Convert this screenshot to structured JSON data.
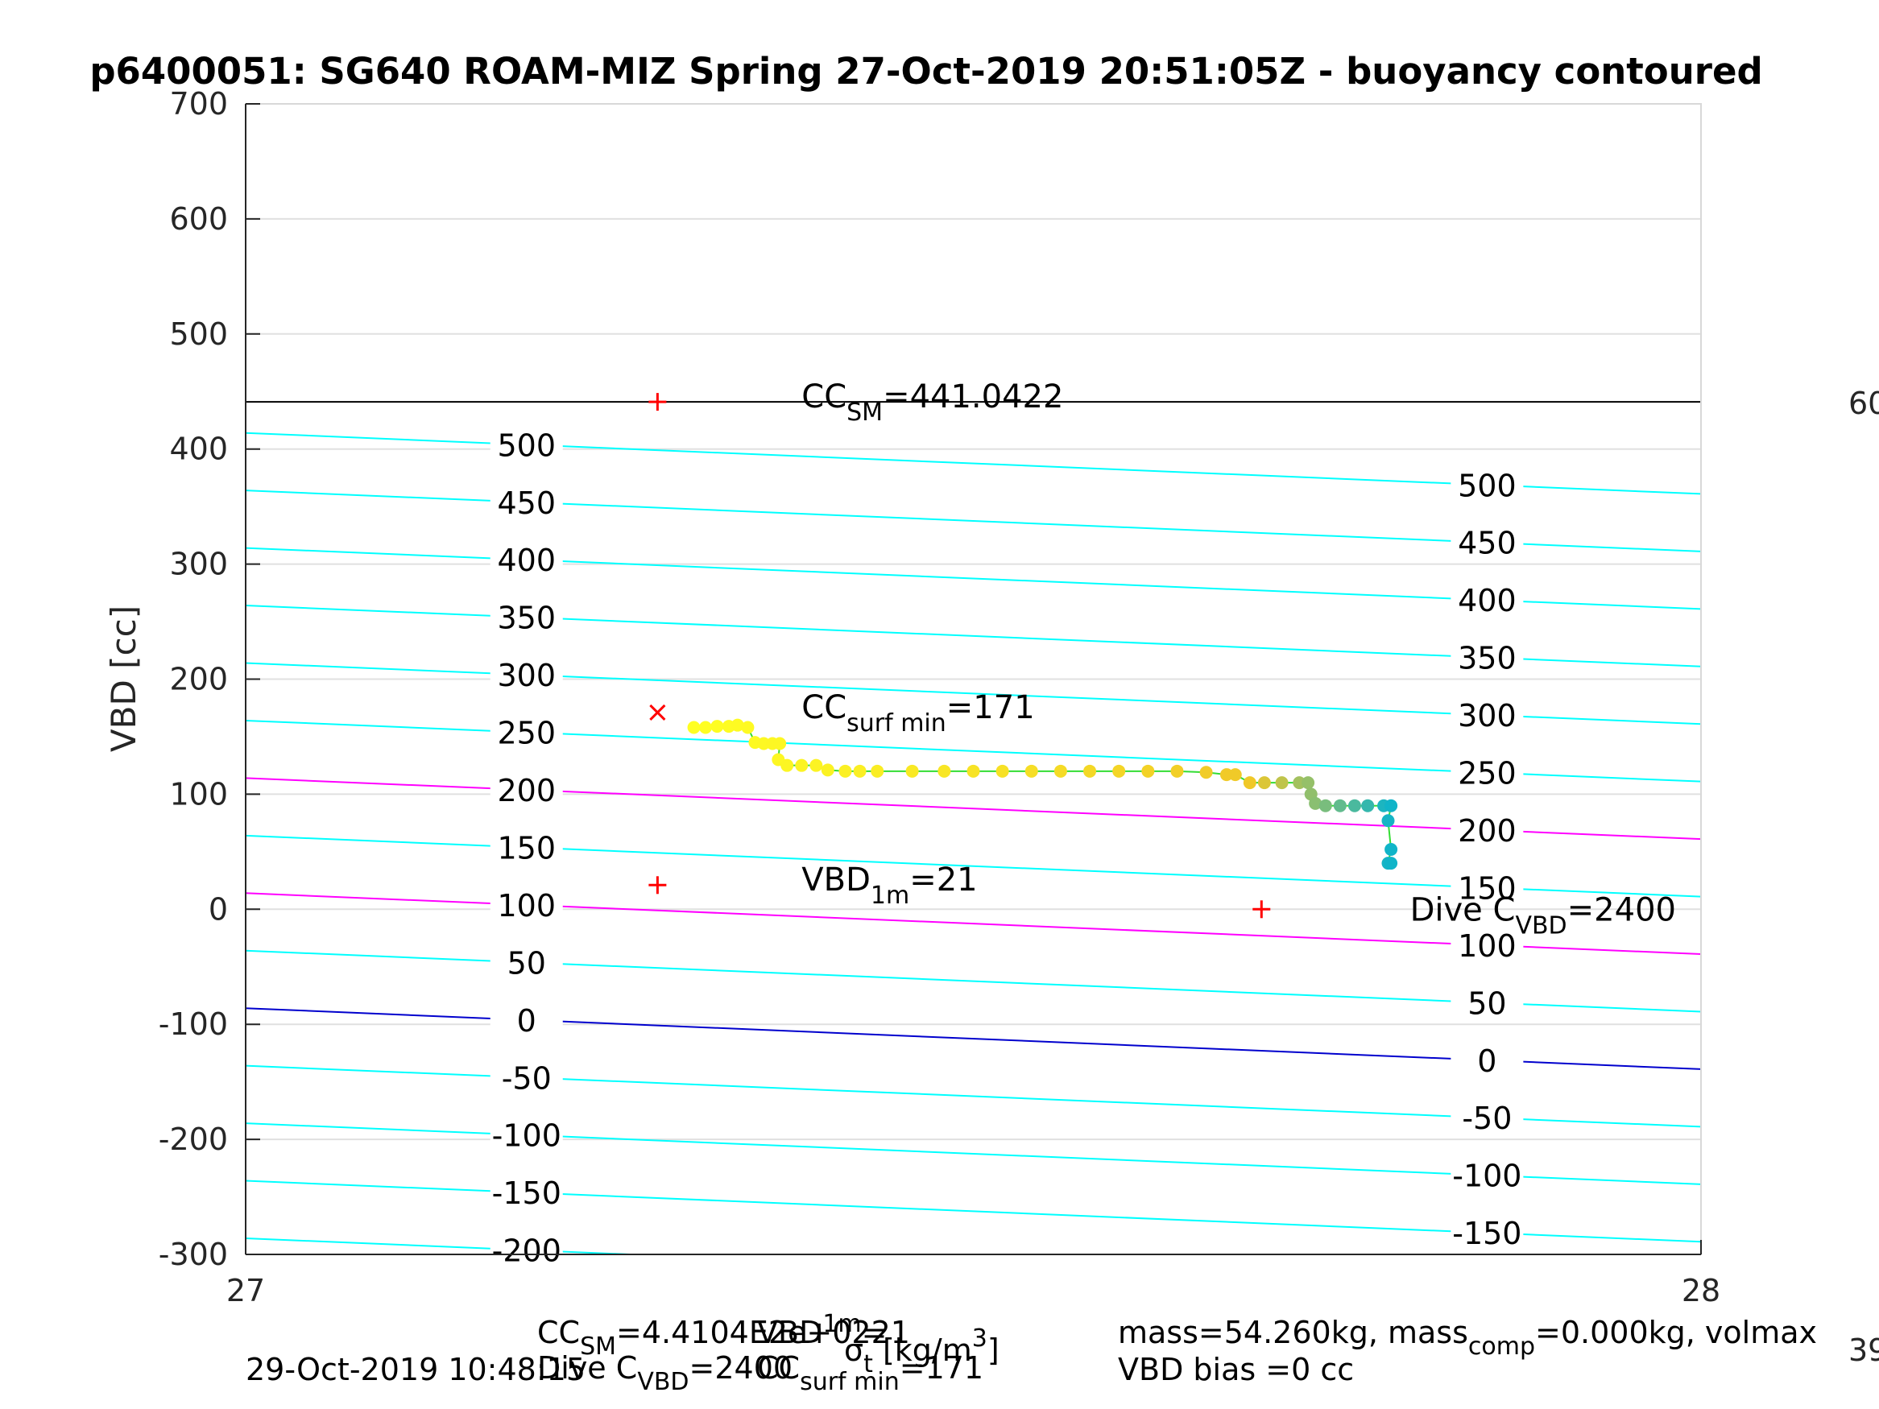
{
  "chart_data": {
    "type": "scatter",
    "title": "p6400051: SG640 ROAM-MIZ Spring 27-Oct-2019 20:51:05Z - buoyancy contoured",
    "xlabel": "",
    "xlabel_parts": [
      "σ",
      "t",
      " [kg/m",
      "3",
      "]"
    ],
    "ylabel": "VBD [cc]",
    "xlim": [
      27,
      28
    ],
    "ylim": [
      -300,
      700
    ],
    "xticks": [
      27,
      28
    ],
    "yticks": [
      -300,
      -200,
      -100,
      0,
      100,
      200,
      300,
      400,
      500,
      600,
      700
    ],
    "grid": true,
    "colors": {
      "contour": "#00ffff",
      "contour_magenta": "#ff00ff",
      "contour_zero": "#0000cd",
      "cc_sm_line": "#000000",
      "marker": "#ff0000",
      "trace_line": "#33dd33"
    },
    "contours": {
      "levels": [
        -200,
        -150,
        -100,
        -50,
        0,
        50,
        100,
        150,
        200,
        250,
        300,
        350,
        400,
        450,
        500
      ],
      "label_x_left": 27.193,
      "label_x_right": 27.853,
      "offset_at_27": -86,
      "offset_at_28": -139,
      "y_per_level": 1
    },
    "reference_lines": [
      {
        "name": "CC_SM",
        "y": 441
      }
    ],
    "markers": [
      {
        "type": "plus",
        "x": 27.283,
        "y": 441
      },
      {
        "type": "x",
        "x": 27.283,
        "y": 171
      },
      {
        "type": "plus",
        "x": 27.283,
        "y": 21
      },
      {
        "type": "plus",
        "x": 27.698,
        "y": 0
      }
    ],
    "annotations": [
      {
        "base": "CC",
        "sub": "SM",
        "rest": "=441.0422",
        "x": 27.382,
        "y": 446
      },
      {
        "base": "CC",
        "sub": "surf min",
        "rest": "=171",
        "x": 27.382,
        "y": 176
      },
      {
        "base": "VBD",
        "sub": "1m",
        "rest": "=21",
        "x": 27.382,
        "y": 26
      },
      {
        "base": "Dive C",
        "sub": "VBD",
        "rest": "=2400",
        "x": 27.8,
        "y": 0
      }
    ],
    "edge_labels": {
      "top": "60",
      "bottom": "39"
    },
    "series": [
      {
        "color_from": "#ffff22",
        "color_to": "#10b4c8",
        "points": [
          [
            27.308,
            158
          ],
          [
            27.316,
            158
          ],
          [
            27.324,
            159
          ],
          [
            27.332,
            159
          ],
          [
            27.338,
            160
          ],
          [
            27.345,
            158
          ],
          [
            27.35,
            145
          ],
          [
            27.356,
            144
          ],
          [
            27.362,
            144
          ],
          [
            27.367,
            144
          ],
          [
            27.366,
            130
          ],
          [
            27.372,
            125
          ],
          [
            27.382,
            125
          ],
          [
            27.392,
            125
          ],
          [
            27.4,
            121
          ],
          [
            27.412,
            120
          ],
          [
            27.422,
            120
          ],
          [
            27.434,
            120
          ],
          [
            27.458,
            120
          ],
          [
            27.48,
            120
          ],
          [
            27.5,
            120
          ],
          [
            27.52,
            120
          ],
          [
            27.54,
            120
          ],
          [
            27.56,
            120
          ],
          [
            27.58,
            120
          ],
          [
            27.6,
            120
          ],
          [
            27.62,
            120
          ],
          [
            27.64,
            120
          ],
          [
            27.66,
            119
          ],
          [
            27.674,
            117
          ],
          [
            27.68,
            117
          ],
          [
            27.69,
            110
          ],
          [
            27.7,
            110
          ],
          [
            27.712,
            110
          ],
          [
            27.724,
            110
          ],
          [
            27.73,
            110
          ],
          [
            27.732,
            100
          ],
          [
            27.735,
            92
          ],
          [
            27.742,
            90
          ],
          [
            27.752,
            90
          ],
          [
            27.762,
            90
          ],
          [
            27.771,
            90
          ],
          [
            27.782,
            90
          ],
          [
            27.787,
            90
          ],
          [
            27.785,
            77
          ],
          [
            27.787,
            52
          ],
          [
            27.785,
            40
          ],
          [
            27.787,
            40
          ]
        ]
      }
    ]
  },
  "footer": {
    "left_date": "29-Oct-2019 10:48:15",
    "line1": [
      {
        "base": "CC",
        "sub": "SM",
        "rest": "=4.4104E2e+0221"
      },
      {
        "base": "VBD",
        "sub": "1m",
        "rest": "="
      }
    ],
    "line2": [
      {
        "base": "Dive C",
        "sub": "VBD",
        "rest": "=2400"
      },
      {
        "base": "CC",
        "sub": "surf min",
        "rest": "=171"
      }
    ],
    "right_line1": [
      "mass=54.260kg, mass",
      "comp",
      "=0.000kg, volmax"
    ],
    "right_line2": "VBD bias =0 cc"
  }
}
